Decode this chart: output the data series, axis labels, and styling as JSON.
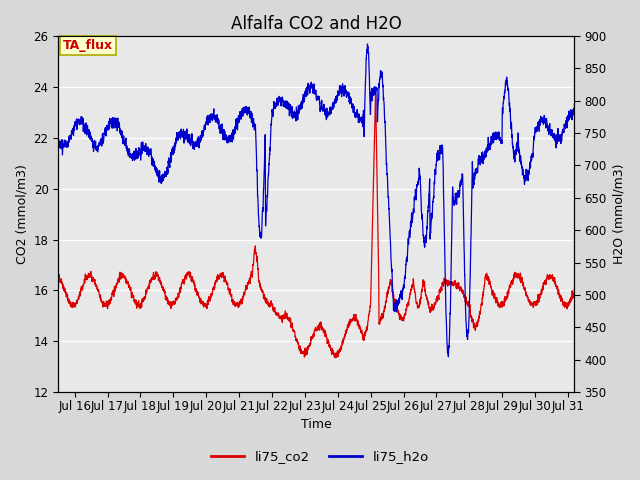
{
  "title": "Alfalfa CO2 and H2O",
  "xlabel": "Time",
  "ylabel_left": "CO2 (mmol/m3)",
  "ylabel_right": "H2O (mmol/m3)",
  "annotation": "TA_flux",
  "legend": [
    "li75_co2",
    "li75_h2o"
  ],
  "color_co2": "#dd0000",
  "color_h2o": "#0000cc",
  "ylim_left": [
    12,
    26
  ],
  "ylim_right": [
    350,
    900
  ],
  "yticks_left": [
    12,
    14,
    16,
    18,
    20,
    22,
    24,
    26
  ],
  "yticks_right": [
    350,
    400,
    450,
    500,
    550,
    600,
    650,
    700,
    750,
    800,
    850,
    900
  ],
  "bg_color": "#d8d8d8",
  "plot_bg_color": "#ffffff",
  "inner_bg_color": "#e8e8e8",
  "annotation_bg": "#ffffcc",
  "annotation_fg": "#cc0000",
  "annotation_border": "#aaaa00",
  "title_fontsize": 12,
  "label_fontsize": 9,
  "tick_fontsize": 8.5,
  "line_width": 0.9,
  "start_day": 15.5,
  "end_day": 31.2,
  "xtick_days": [
    16,
    17,
    18,
    19,
    20,
    21,
    22,
    23,
    24,
    25,
    26,
    27,
    28,
    29,
    30,
    31
  ]
}
